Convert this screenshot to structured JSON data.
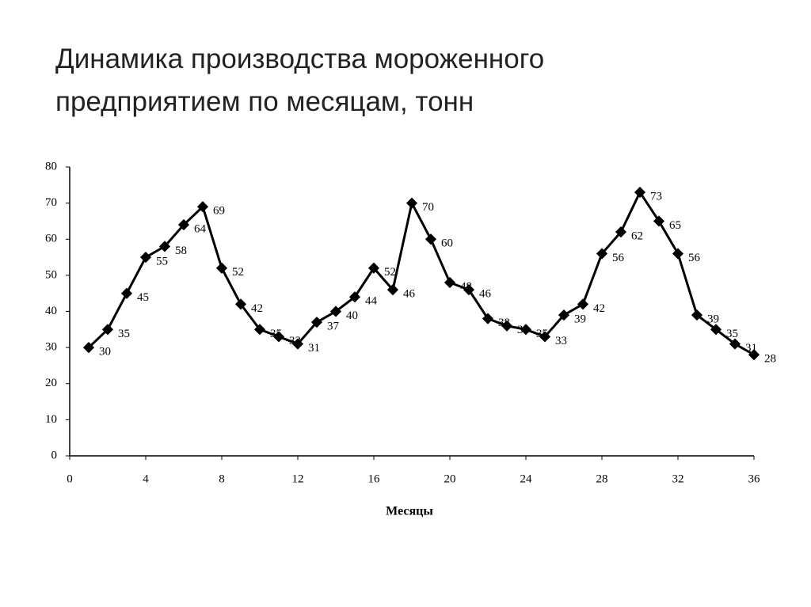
{
  "chart_data": {
    "type": "line",
    "title": "Динамика производства мороженного предприятием по месяцам, тонн",
    "xlabel": "Месяцы",
    "x": [
      1,
      2,
      3,
      4,
      5,
      6,
      7,
      8,
      9,
      10,
      11,
      12,
      13,
      14,
      15,
      16,
      17,
      18,
      19,
      20,
      21,
      22,
      23,
      24,
      25,
      26,
      27,
      28,
      29,
      30,
      31,
      32,
      33,
      34,
      35,
      36
    ],
    "series": [
      {
        "color": "#000000",
        "values": [
          30,
          35,
          45,
          55,
          58,
          64,
          69,
          52,
          42,
          35,
          33,
          31,
          37,
          40,
          44,
          52,
          46,
          70,
          60,
          48,
          46,
          38,
          36,
          35,
          33,
          39,
          42,
          56,
          62,
          73,
          65,
          56,
          39,
          35,
          31,
          28
        ]
      }
    ],
    "xlim": [
      0,
      36
    ],
    "xticks": [
      0,
      4,
      8,
      12,
      16,
      20,
      24,
      28,
      32,
      36
    ],
    "ylim": [
      0,
      80
    ],
    "yticks": [
      0,
      10,
      20,
      30,
      40,
      50,
      60,
      70,
      80
    ],
    "grid": false,
    "data_labels": true
  }
}
